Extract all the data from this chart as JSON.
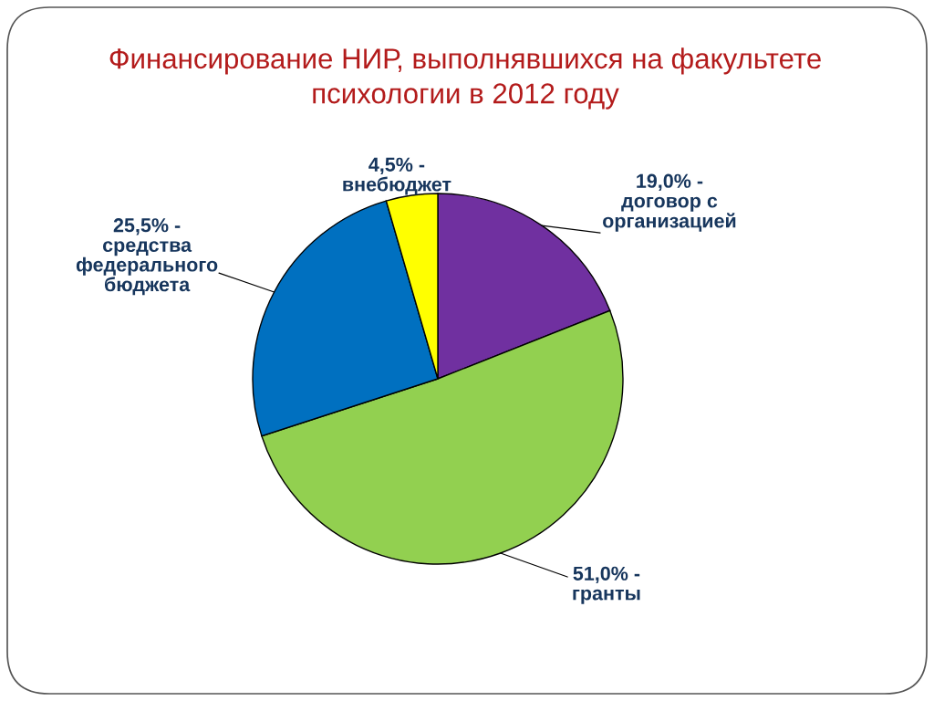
{
  "chart_data": {
    "type": "pie",
    "title": "Финансирование НИР, выполнявшихся на факультете\nпсихологии в 2012 году",
    "categories": [
      "договор с\nорганизацией",
      "гранты",
      "средства\nфедерального\nбюджета",
      "внебюджет"
    ],
    "values": [
      19.0,
      51.0,
      25.5,
      4.5
    ],
    "value_labels": [
      "19,0% -",
      "51,0% -",
      "25,5% -",
      "4,5% -"
    ],
    "colors": [
      "#7030a0",
      "#92d050",
      "#0070c0",
      "#ffff00"
    ]
  }
}
